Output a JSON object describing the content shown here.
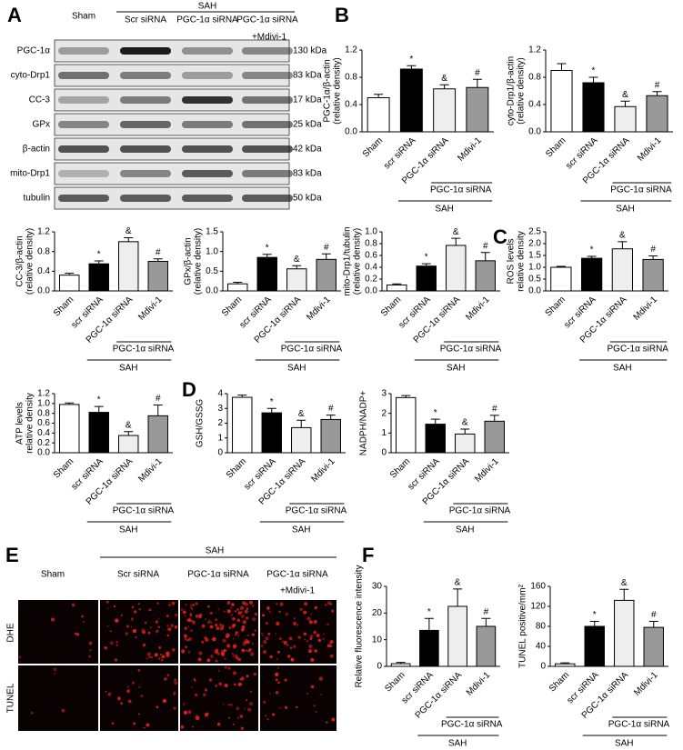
{
  "panel_labels": [
    "A",
    "B",
    "C",
    "D",
    "E",
    "F"
  ],
  "blot": {
    "sham": "Sham",
    "group": "SAH",
    "lanes": [
      "Scr siRNA",
      "PGC-1α siRNA",
      "PGC-1α siRNA"
    ],
    "extra": "+Mdivi-1",
    "rows": [
      {
        "label": "PGC-1α",
        "size": "130 kDa"
      },
      {
        "label": "cyto-Drp1",
        "size": "83 kDa"
      },
      {
        "label": "CC-3",
        "size": "17 kDa"
      },
      {
        "label": "GPx",
        "size": "25 kDa"
      },
      {
        "label": "β-actin",
        "size": "42 kDa"
      },
      {
        "label": "mito-Drp1",
        "size": "83 kDa"
      },
      {
        "label": "tubulin",
        "size": "50 kDa"
      }
    ]
  },
  "images": {
    "sham": "Sham",
    "group": "SAH",
    "lanes": [
      "Scr siRNA",
      "PGC-1α siRNA",
      "PGC-1α siRNA"
    ],
    "extra": "+Mdivi-1",
    "rows": [
      "DHE",
      "TUNEL"
    ]
  },
  "chart_data": [
    {
      "type": "bar",
      "ylabel": [
        "PGC-1α/β-actin",
        "(relative density)"
      ],
      "categories": [
        "Sham",
        "scr siRNA",
        "PGC-1α siRNA",
        "Mdivi-1"
      ],
      "values": [
        0.5,
        0.92,
        0.63,
        0.65
      ],
      "errors": [
        0.05,
        0.05,
        0.06,
        0.12
      ],
      "markers": [
        null,
        "*",
        "&",
        "#"
      ],
      "colors": [
        "#ffffff",
        "#000000",
        "#eeeeee",
        "#999999"
      ],
      "brackets": [
        "PGC-1α siRNA",
        "SAH"
      ],
      "ylim": [
        0,
        1.2
      ],
      "yticks": [
        {
          "value": 0,
          "label": "0.0"
        },
        0.4,
        0.8,
        1.2
      ]
    },
    {
      "type": "bar",
      "ylabel": [
        "cyto-Drp1/β-actin",
        "(relative density)"
      ],
      "categories": [
        "Sham",
        "scr siRNA",
        "PGC-1α siRNA",
        "Mdivi-1"
      ],
      "values": [
        0.9,
        0.72,
        0.37,
        0.53
      ],
      "errors": [
        0.1,
        0.08,
        0.08,
        0.06
      ],
      "markers": [
        null,
        "*",
        "&",
        "#"
      ],
      "colors": [
        "#ffffff",
        "#000000",
        "#eeeeee",
        "#999999"
      ],
      "brackets": [
        "PGC-1α siRNA",
        "SAH"
      ],
      "ylim": [
        0,
        1.2
      ],
      "yticks": [
        {
          "value": 0,
          "label": "0.0"
        },
        0.4,
        0.8,
        1.2
      ]
    },
    {
      "type": "bar",
      "ylabel": [
        "CC-3/β-actin",
        "(relative density)"
      ],
      "categories": [
        "Sham",
        "scr siRNA",
        "PGC-1α siRNA",
        "Mdivi-1"
      ],
      "values": [
        0.32,
        0.55,
        1.0,
        0.6
      ],
      "errors": [
        0.04,
        0.06,
        0.08,
        0.05
      ],
      "markers": [
        null,
        "*",
        "&",
        "#"
      ],
      "colors": [
        "#ffffff",
        "#000000",
        "#eeeeee",
        "#999999"
      ],
      "brackets": [
        "PGC-1α siRNA",
        "SAH"
      ],
      "ylim": [
        0,
        1.2
      ],
      "yticks": [
        {
          "value": 0,
          "label": "0.0"
        },
        0.4,
        0.8,
        1.2
      ]
    },
    {
      "type": "bar",
      "ylabel": [
        "GPx/β-actin",
        "(relative density)"
      ],
      "categories": [
        "Sham",
        "scr siRNA",
        "PGC-1α siRNA",
        "Mdivi-1"
      ],
      "values": [
        0.18,
        0.85,
        0.56,
        0.8
      ],
      "errors": [
        0.04,
        0.08,
        0.08,
        0.14
      ],
      "markers": [
        null,
        "*",
        "&",
        "#"
      ],
      "colors": [
        "#ffffff",
        "#000000",
        "#eeeeee",
        "#999999"
      ],
      "brackets": [
        "PGC-1α siRNA",
        "SAH"
      ],
      "ylim": [
        0,
        1.5
      ],
      "yticks": [
        {
          "value": 0,
          "label": "0.0"
        },
        0.5,
        {
          "value": 1,
          "label": "1.0"
        },
        1.5
      ]
    },
    {
      "type": "bar",
      "ylabel": [
        "mito-Drp1/tubulin",
        "(relative density)"
      ],
      "categories": [
        "Sham",
        "scr siRNA",
        "PGC-1α siRNA",
        "Mdivi-1"
      ],
      "values": [
        0.1,
        0.42,
        0.77,
        0.51
      ],
      "errors": [
        0.02,
        0.04,
        0.12,
        0.14
      ],
      "markers": [
        null,
        "*",
        "&",
        "#"
      ],
      "colors": [
        "#ffffff",
        "#000000",
        "#eeeeee",
        "#999999"
      ],
      "brackets": [
        "PGC-1α siRNA",
        "SAH"
      ],
      "ylim": [
        0,
        1
      ],
      "yticks": [
        {
          "value": 0,
          "label": "0.0"
        },
        0.2,
        0.4,
        0.6,
        0.8,
        {
          "value": 1,
          "label": "1.0"
        }
      ]
    },
    {
      "type": "bar",
      "ylabel": [
        "ROS levels",
        "relative density"
      ],
      "categories": [
        "Sham",
        "scr siRNA",
        "PGC-1α siRNA",
        "Mdivi-1"
      ],
      "values": [
        1.0,
        1.38,
        1.78,
        1.33
      ],
      "errors": [
        0.04,
        0.08,
        0.3,
        0.15
      ],
      "markers": [
        null,
        "*",
        "&",
        "#"
      ],
      "colors": [
        "#ffffff",
        "#000000",
        "#eeeeee",
        "#999999"
      ],
      "brackets": [
        "PGC-1α siRNA",
        "SAH"
      ],
      "ylim": [
        0,
        2.5
      ],
      "yticks": [
        {
          "value": 0,
          "label": "0.0"
        },
        0.5,
        {
          "value": 1,
          "label": "1.0"
        },
        1.5,
        {
          "value": 2,
          "label": "2.0"
        },
        2.5
      ]
    },
    {
      "type": "bar",
      "ylabel": [
        "ATP levels",
        "relative density"
      ],
      "categories": [
        "Sham",
        "scr siRNA",
        "PGC-1α siRNA",
        "Mdivi-1"
      ],
      "values": [
        0.98,
        0.82,
        0.35,
        0.75
      ],
      "errors": [
        0.03,
        0.12,
        0.08,
        0.22
      ],
      "markers": [
        null,
        "*",
        "&",
        "#"
      ],
      "colors": [
        "#ffffff",
        "#000000",
        "#eeeeee",
        "#999999"
      ],
      "brackets": [
        "PGC-1α siRNA",
        "SAH"
      ],
      "ylim": [
        0,
        1.2
      ],
      "yticks": [
        {
          "value": 0,
          "label": "0.0"
        },
        0.2,
        0.4,
        0.6,
        0.8,
        {
          "value": 1,
          "label": "1.0"
        },
        1.2
      ]
    },
    {
      "type": "bar",
      "ylabel": [
        "GSH/GSSG"
      ],
      "categories": [
        "Sham",
        "scr siRNA",
        "PGC-1α siRNA",
        "Mdivi-1"
      ],
      "values": [
        3.75,
        2.7,
        1.7,
        2.25
      ],
      "errors": [
        0.15,
        0.3,
        0.5,
        0.3
      ],
      "markers": [
        null,
        "*",
        "&",
        "#"
      ],
      "colors": [
        "#ffffff",
        "#000000",
        "#eeeeee",
        "#999999"
      ],
      "brackets": [
        "PGC-1α siRNA",
        "SAH"
      ],
      "ylim": [
        0,
        4
      ],
      "yticks": [
        0,
        1,
        2,
        3,
        4
      ]
    },
    {
      "type": "bar",
      "ylabel": [
        "NADPH/NADP+"
      ],
      "categories": [
        "Sham",
        "scr siRNA",
        "PGC-1α siRNA",
        "Mdivi-1"
      ],
      "values": [
        2.8,
        1.45,
        0.95,
        1.6
      ],
      "errors": [
        0.1,
        0.25,
        0.25,
        0.3
      ],
      "markers": [
        null,
        "*",
        "&",
        "#"
      ],
      "colors": [
        "#ffffff",
        "#000000",
        "#eeeeee",
        "#999999"
      ],
      "brackets": [
        "PGC-1α siRNA",
        "SAH"
      ],
      "ylim": [
        0,
        3
      ],
      "yticks": [
        0,
        1,
        2,
        3
      ]
    },
    {
      "type": "bar",
      "ylabel": [
        "Relative fluorescence intensity"
      ],
      "categories": [
        "Sham",
        "scr siRNA",
        "PGC-1α siRNA",
        "Mdivi-1"
      ],
      "values": [
        1,
        13.5,
        22.5,
        15
      ],
      "errors": [
        0.5,
        4.5,
        6.5,
        3
      ],
      "markers": [
        null,
        "*",
        "&",
        "#"
      ],
      "colors": [
        "#ffffff",
        "#000000",
        "#eeeeee",
        "#999999"
      ],
      "brackets": [
        "PGC-1α siRNA",
        "SAH"
      ],
      "ylim": [
        0,
        30
      ],
      "yticks": [
        0,
        10,
        20,
        30
      ]
    },
    {
      "type": "bar",
      "ylabel": [
        "TUNEL positive/mm²"
      ],
      "categories": [
        "Sham",
        "scr siRNA",
        "PGC-1α siRNA",
        "Mdivi-1"
      ],
      "values": [
        5,
        80,
        132,
        78
      ],
      "errors": [
        2,
        10,
        22,
        12
      ],
      "markers": [
        null,
        "*",
        "&",
        "#"
      ],
      "colors": [
        "#ffffff",
        "#000000",
        "#eeeeee",
        "#999999"
      ],
      "brackets": [
        "PGC-1α siRNA",
        "SAH"
      ],
      "ylim": [
        0,
        160
      ],
      "yticks": [
        0,
        40,
        80,
        120,
        160
      ]
    }
  ]
}
